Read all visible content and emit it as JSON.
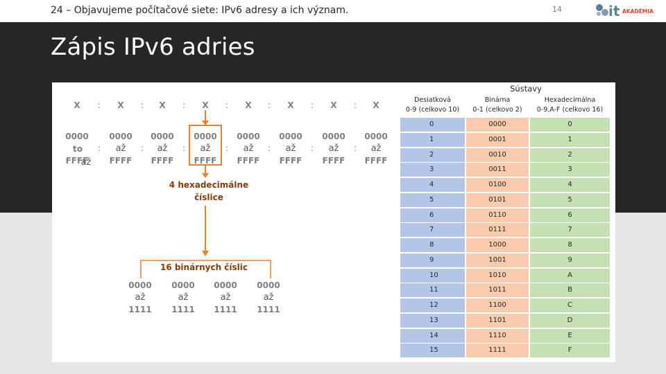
{
  "header": {
    "topic": "24 – Objavujeme počítačové siete: IPv6 adresy a ich význam.",
    "page_number": "14",
    "logo_text": "it",
    "logo_subtext": "AKADÉMIA"
  },
  "slide": {
    "title": "Zápis IPv6 adries"
  },
  "diagram": {
    "groups_label": [
      "X",
      "X",
      "X",
      "X",
      "X",
      "X",
      "X",
      "X"
    ],
    "separator": ":",
    "group_start": "0000",
    "group_to": "to",
    "group_end": "FFFF",
    "group_between": "až",
    "group_between_first": "až",
    "hex_caption_line1": "4 hexadecimálne",
    "hex_caption_line2": "číslice",
    "binary_caption": "16 binárnych číslic",
    "binary_start": "0000",
    "binary_between": "až",
    "binary_end": "1111"
  },
  "table": {
    "caption": "Sústavy",
    "columns": [
      {
        "name": "Desiatková",
        "range": "0-9 (celkovo 10)"
      },
      {
        "name": "Binárna",
        "range": "0-1 (celkovo 2)"
      },
      {
        "name": "Hexadecimálna",
        "range": "0-9,A-F (celkovo 16)"
      }
    ],
    "rows": [
      [
        "0",
        "0000",
        "0"
      ],
      [
        "1",
        "0001",
        "1"
      ],
      [
        "2",
        "0010",
        "2"
      ],
      [
        "3",
        "0011",
        "3"
      ],
      [
        "4",
        "0100",
        "4"
      ],
      [
        "5",
        "0101",
        "5"
      ],
      [
        "6",
        "0110",
        "6"
      ],
      [
        "7",
        "0111",
        "7"
      ],
      [
        "8",
        "1000",
        "8"
      ],
      [
        "9",
        "1001",
        "9"
      ],
      [
        "10",
        "1010",
        "A"
      ],
      [
        "11",
        "1011",
        "B"
      ],
      [
        "12",
        "1100",
        "C"
      ],
      [
        "13",
        "1101",
        "D"
      ],
      [
        "14",
        "1110",
        "E"
      ],
      [
        "15",
        "1111",
        "F"
      ]
    ]
  },
  "colors": {
    "band": "#262626",
    "accent_orange": "#ed7d31",
    "caption_brown": "#843c0c",
    "decimal_fill": "#b4c6e7",
    "binary_fill": "#f8cbad",
    "hex_fill": "#c5e0b3"
  }
}
